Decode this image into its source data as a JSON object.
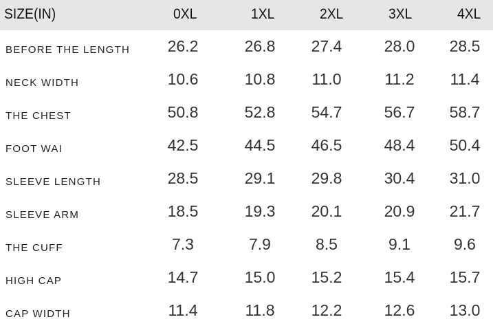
{
  "table": {
    "header": [
      "SIZE(IN)",
      "0XL",
      "1XL",
      "2XL",
      "3XL",
      "4XL"
    ],
    "rows": [
      {
        "label": "BEFORE THE LENGTH",
        "values": [
          "26.2",
          "26.8",
          "27.4",
          "28.0",
          "28.5"
        ]
      },
      {
        "label": "NECK WIDTH",
        "values": [
          "10.6",
          "10.8",
          "11.0",
          "11.2",
          "11.4"
        ]
      },
      {
        "label": "THE CHEST",
        "values": [
          "50.8",
          "52.8",
          "54.7",
          "56.7",
          "58.7"
        ]
      },
      {
        "label": "FOOT WAI",
        "values": [
          "42.5",
          "44.5",
          "46.5",
          "48.4",
          "50.4"
        ]
      },
      {
        "label": "SLEEVE LENGTH",
        "values": [
          "28.5",
          "29.1",
          "29.8",
          "30.4",
          "31.0"
        ]
      },
      {
        "label": "SLEEVE ARM",
        "values": [
          "18.5",
          "19.3",
          "20.1",
          "20.9",
          "21.7"
        ]
      },
      {
        "label": "THE CUFF",
        "values": [
          "7.3",
          "7.9",
          "8.5",
          "9.1",
          "9.6"
        ]
      },
      {
        "label": "HIGH CAP",
        "values": [
          "14.7",
          "15.0",
          "15.2",
          "15.4",
          "15.7"
        ]
      },
      {
        "label": "CAP WIDTH",
        "values": [
          "11.4",
          "11.8",
          "12.2",
          "12.6",
          "13.0"
        ]
      }
    ]
  },
  "colors": {
    "header_bg": "#e6e6e6",
    "text": "#222222"
  }
}
